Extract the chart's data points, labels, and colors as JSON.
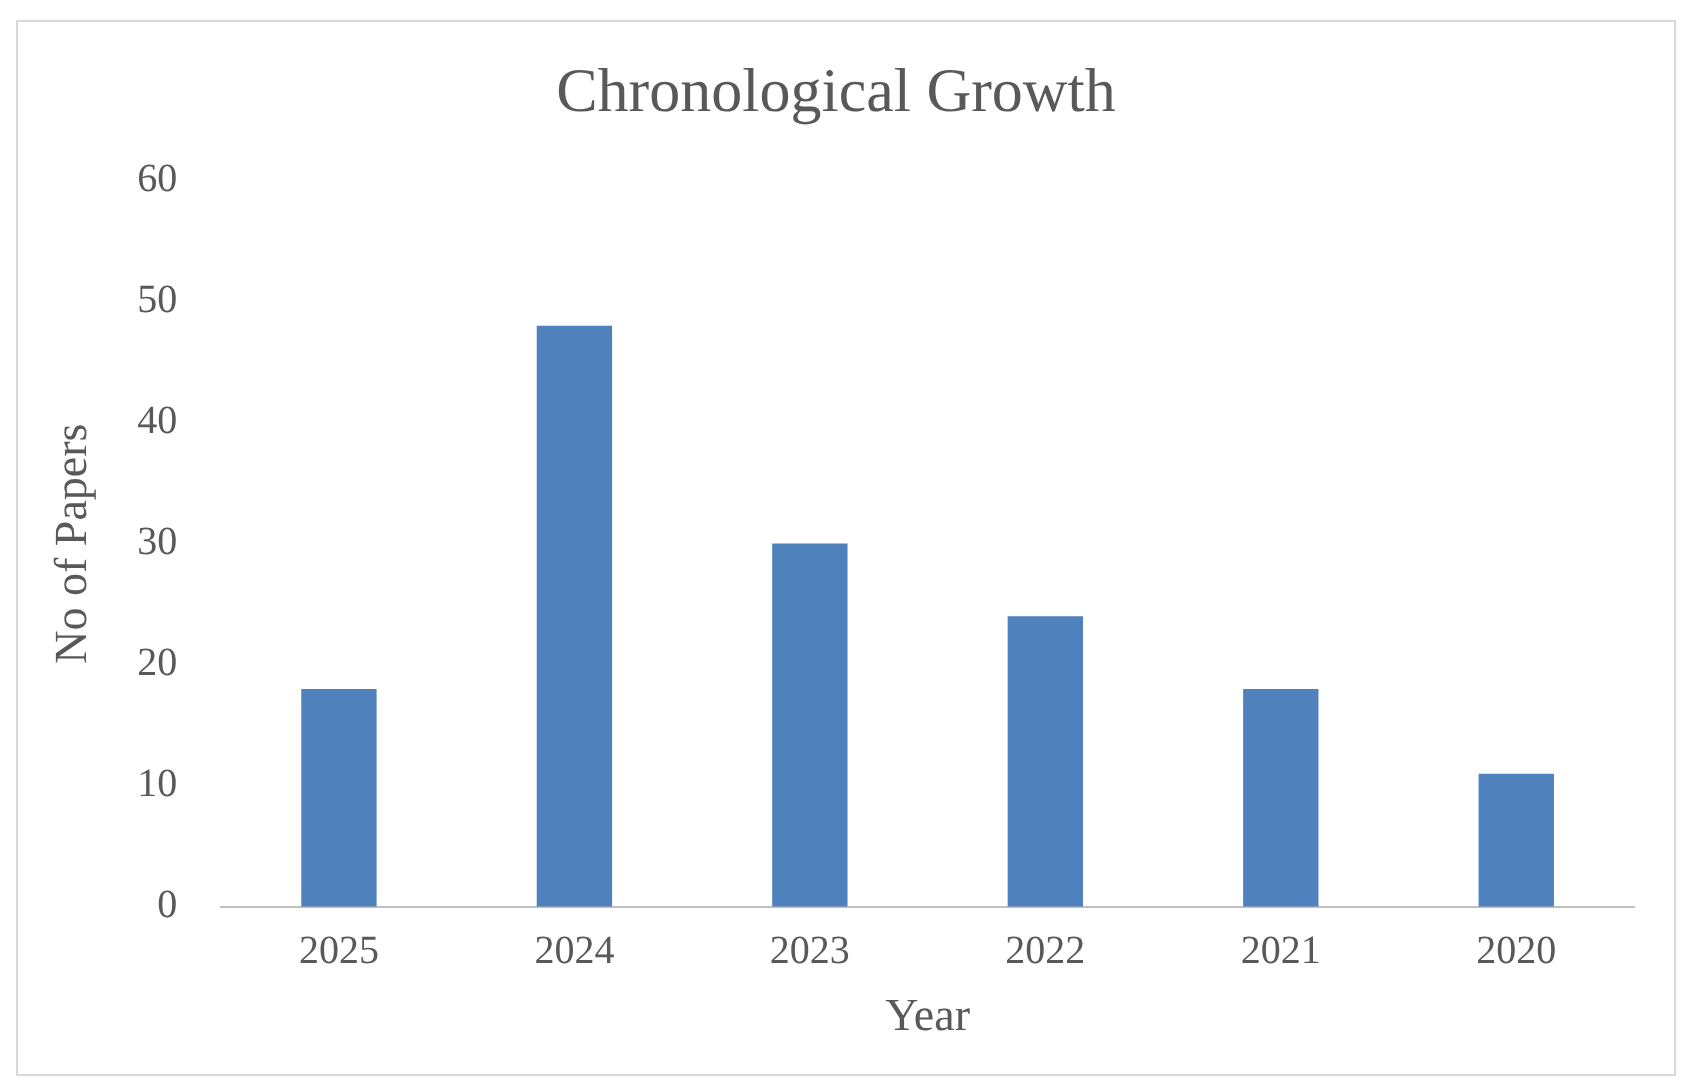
{
  "chart_data": {
    "type": "bar",
    "title": "Chronological Growth",
    "xlabel": "Year",
    "ylabel": "No of Papers",
    "categories": [
      "2025",
      "2024",
      "2023",
      "2022",
      "2021",
      "2020"
    ],
    "values": [
      18,
      48,
      30,
      24,
      18,
      11
    ],
    "color": "#4f81bd",
    "ylim": [
      0,
      60
    ],
    "yticks": [
      0,
      10,
      20,
      30,
      40,
      50,
      60
    ],
    "grid": false,
    "legend": false
  }
}
